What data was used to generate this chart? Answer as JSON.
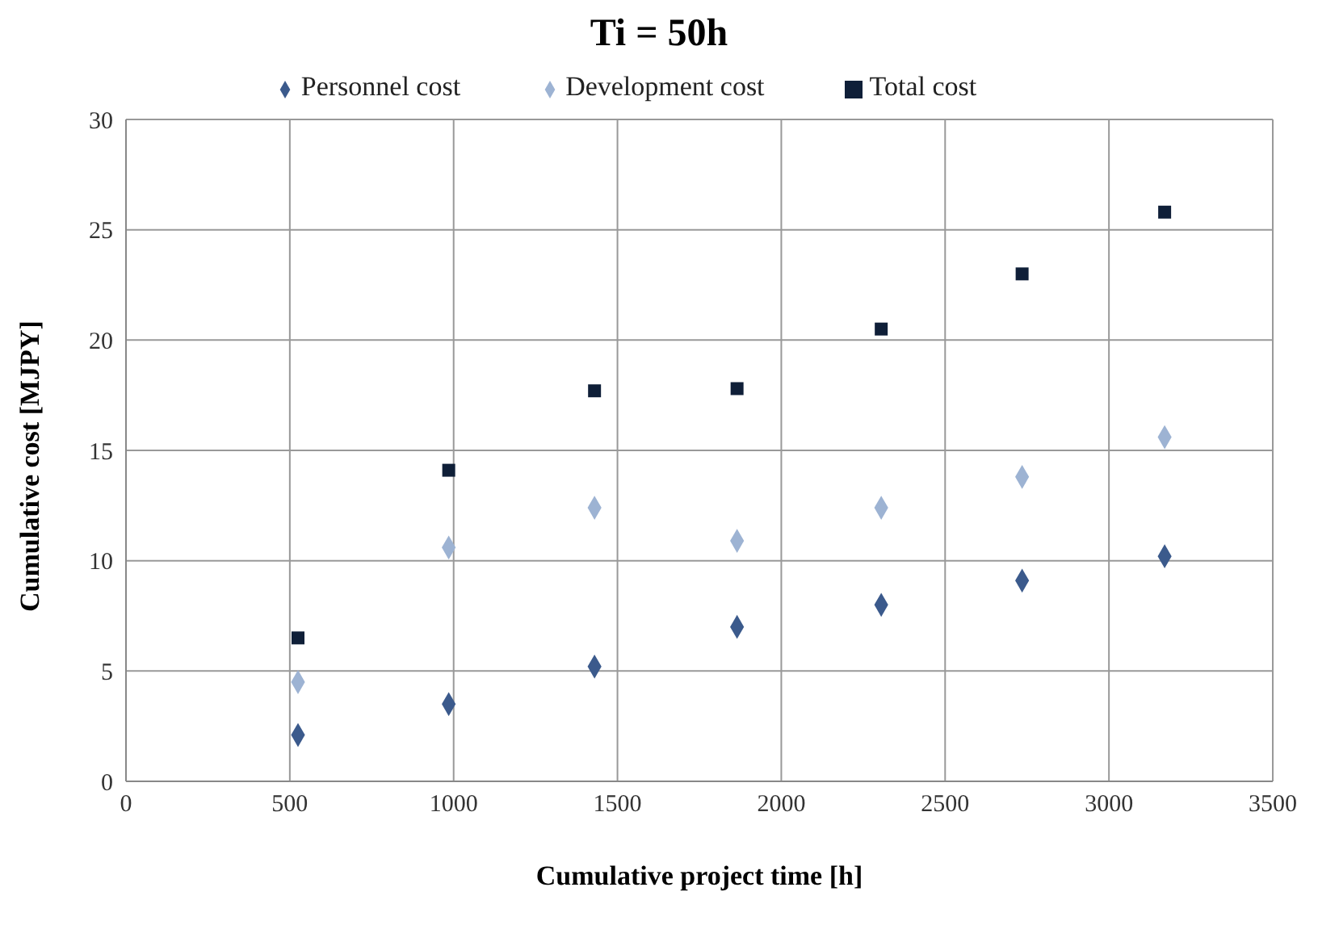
{
  "chart_data": {
    "type": "scatter",
    "title": "Ti = 50h",
    "xlabel": "Cumulative project time [h]",
    "ylabel": "Cumulative cost [MJPY]",
    "x": [
      525,
      985,
      1430,
      1865,
      2305,
      2735,
      3170
    ],
    "series": [
      {
        "name": "Personnel cost",
        "color": "#3b5a8c",
        "marker": "diamond",
        "values": [
          2.1,
          3.5,
          5.2,
          7.0,
          8.0,
          9.1,
          10.2
        ]
      },
      {
        "name": "Development cost",
        "color": "#9db3d3",
        "marker": "diamond",
        "values": [
          4.5,
          10.6,
          12.4,
          10.9,
          12.4,
          13.8,
          15.6
        ]
      },
      {
        "name": "Total cost",
        "color": "#0f1f38",
        "marker": "square",
        "values": [
          6.5,
          14.1,
          17.7,
          17.8,
          20.5,
          23.0,
          25.8
        ]
      }
    ],
    "xlim": [
      0,
      3500
    ],
    "xticks": [
      0,
      500,
      1000,
      1500,
      2000,
      2500,
      3000,
      3500
    ],
    "ylim": [
      0,
      30
    ],
    "yticks": [
      0,
      5,
      10,
      15,
      20,
      25,
      30
    ],
    "grid": true,
    "legend": "top"
  }
}
